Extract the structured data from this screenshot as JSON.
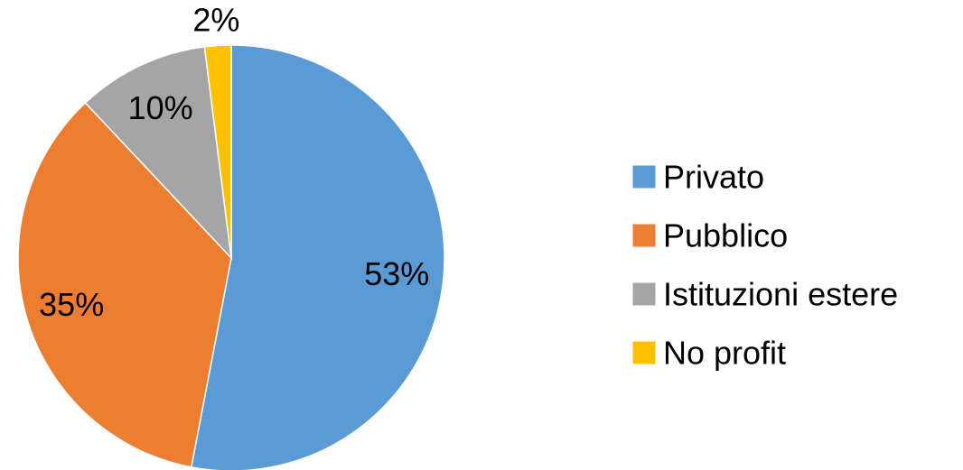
{
  "chart_data": {
    "type": "pie",
    "title": "",
    "categories": [
      "Privato",
      "Pubblico",
      "Istituzioni estere",
      "No profit"
    ],
    "values": [
      53,
      35,
      10,
      2
    ],
    "value_labels": [
      "53%",
      "35%",
      "10%",
      "2%"
    ],
    "colors": [
      "#5B9BD5",
      "#ED7D31",
      "#A5A5A5",
      "#FFC000"
    ],
    "legend_position": "right",
    "start_angle": "12 o'clock",
    "direction": "clockwise"
  }
}
